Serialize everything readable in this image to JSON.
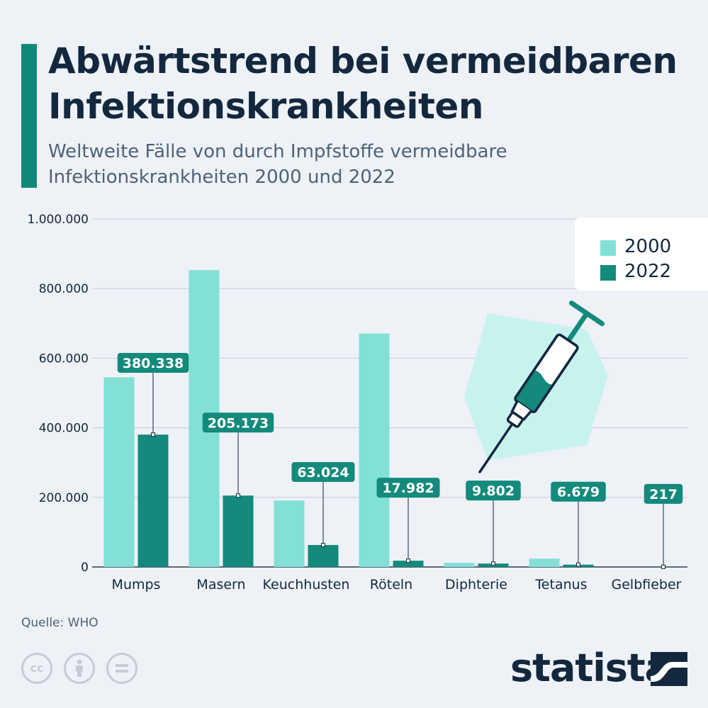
{
  "header": {
    "title": "Abwärtstrend bei vermeidbaren Infektionskrankheiten",
    "subtitle": "Weltweite Fälle von durch Impfstoffe vermeidbare Infektionskrankheiten 2000 und 2022"
  },
  "legend": {
    "items": [
      "2000",
      "2022"
    ]
  },
  "footer": {
    "source": "Quelle: WHO",
    "brand": "statista"
  },
  "colors": {
    "series2000": "#82e0d5",
    "series2022": "#138a7b",
    "accent": "#0f8a7a",
    "text": "#13283e"
  },
  "icons": [
    "syringe-icon",
    "cc-icon",
    "attribution-icon",
    "no-derivatives-icon",
    "statista-logo-icon"
  ],
  "chart_data": {
    "type": "bar",
    "categories": [
      "Mumps",
      "Masern",
      "Keuchhusten",
      "Röteln",
      "Diphterie",
      "Tetanus",
      "Gelbfieber"
    ],
    "series": [
      {
        "name": "2000",
        "values": [
          545000,
          853000,
          191000,
          671000,
          12000,
          24000,
          0
        ]
      },
      {
        "name": "2022",
        "values": [
          380338,
          205173,
          63024,
          17982,
          9802,
          6679,
          217
        ]
      }
    ],
    "data_labels": {
      "2022": [
        "380.338",
        "205.173",
        "63.024",
        "17.982",
        "9.802",
        "6.679",
        "217"
      ]
    },
    "y_ticks": [
      "0",
      "200.000",
      "400.000",
      "600.000",
      "800.000",
      "1.000.000"
    ],
    "ylim": [
      0,
      1000000
    ],
    "grid": true,
    "legend_position": "top-right"
  }
}
